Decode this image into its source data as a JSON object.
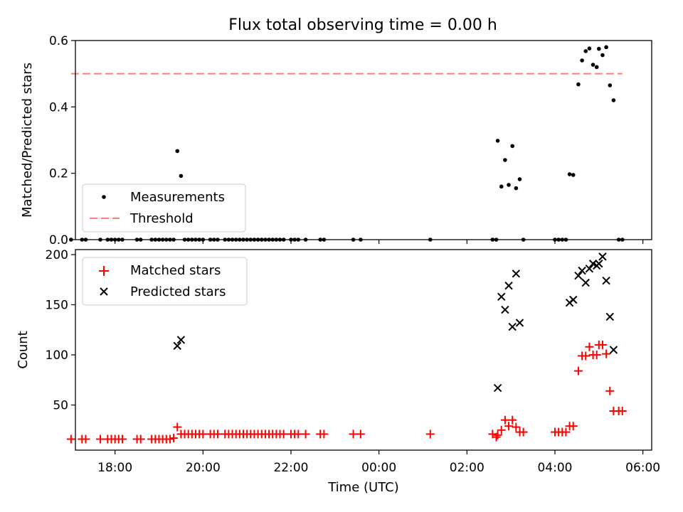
{
  "title": "Flux total observing time = 0.00 h",
  "chart_data": [
    {
      "type": "scatter",
      "ylabel": "Matched/Predicted stars",
      "ylim": [
        0,
        0.6
      ],
      "yticks": [
        "0.0",
        "0.2",
        "0.4",
        "0.6"
      ],
      "xlim": [
        "17:06",
        "06:12"
      ],
      "legend_position": "lower-left",
      "threshold": 0.5,
      "legend": [
        {
          "label": "Measurements",
          "marker": "dot",
          "color": "#000000"
        },
        {
          "label": "Threshold",
          "marker": "dashed-line",
          "color": "#ff7f7f"
        }
      ],
      "series": [
        {
          "name": "Measurements",
          "color": "#000000",
          "points": [
            [
              "17:00",
              0
            ],
            [
              "17:15",
              0
            ],
            [
              "17:20",
              0
            ],
            [
              "17:40",
              0
            ],
            [
              "17:50",
              0
            ],
            [
              "17:55",
              0
            ],
            [
              "18:00",
              0
            ],
            [
              "18:05",
              0
            ],
            [
              "18:10",
              0
            ],
            [
              "18:30",
              0
            ],
            [
              "18:35",
              0
            ],
            [
              "18:50",
              0
            ],
            [
              "18:55",
              0
            ],
            [
              "19:00",
              0
            ],
            [
              "19:05",
              0
            ],
            [
              "19:10",
              0
            ],
            [
              "19:15",
              0
            ],
            [
              "19:20",
              0
            ],
            [
              "19:25",
              0.267
            ],
            [
              "19:30",
              0.192
            ],
            [
              "19:35",
              0
            ],
            [
              "19:40",
              0
            ],
            [
              "19:45",
              0
            ],
            [
              "19:50",
              0
            ],
            [
              "19:55",
              0
            ],
            [
              "20:00",
              0
            ],
            [
              "20:10",
              0
            ],
            [
              "20:15",
              0
            ],
            [
              "20:20",
              0
            ],
            [
              "20:30",
              0
            ],
            [
              "20:35",
              0
            ],
            [
              "20:40",
              0
            ],
            [
              "20:45",
              0
            ],
            [
              "20:50",
              0
            ],
            [
              "20:55",
              0
            ],
            [
              "21:00",
              0
            ],
            [
              "21:05",
              0
            ],
            [
              "21:10",
              0
            ],
            [
              "21:15",
              0
            ],
            [
              "21:20",
              0
            ],
            [
              "21:25",
              0
            ],
            [
              "21:30",
              0
            ],
            [
              "21:35",
              0
            ],
            [
              "21:40",
              0
            ],
            [
              "21:45",
              0
            ],
            [
              "21:50",
              0
            ],
            [
              "22:00",
              0
            ],
            [
              "22:05",
              0
            ],
            [
              "22:10",
              0
            ],
            [
              "22:20",
              0
            ],
            [
              "22:40",
              0
            ],
            [
              "22:45",
              0
            ],
            [
              "23:25",
              0
            ],
            [
              "23:35",
              0
            ],
            [
              "01:10",
              0
            ],
            [
              "02:35",
              0
            ],
            [
              "02:40",
              0
            ],
            [
              "02:42",
              0.298
            ],
            [
              "02:47",
              0.16
            ],
            [
              "02:52",
              0.24
            ],
            [
              "02:57",
              0.165
            ],
            [
              "03:02",
              0.282
            ],
            [
              "03:07",
              0.155
            ],
            [
              "03:12",
              0.182
            ],
            [
              "03:17",
              0
            ],
            [
              "04:00",
              0
            ],
            [
              "04:05",
              0
            ],
            [
              "04:10",
              0
            ],
            [
              "04:15",
              0
            ],
            [
              "04:20",
              0.197
            ],
            [
              "04:25",
              0.195
            ],
            [
              "04:32",
              0.468
            ],
            [
              "04:37",
              0.54
            ],
            [
              "04:42",
              0.568
            ],
            [
              "04:47",
              0.576
            ],
            [
              "04:52",
              0.527
            ],
            [
              "04:57",
              0.52
            ],
            [
              "05:00",
              0.575
            ],
            [
              "05:05",
              0.556
            ],
            [
              "05:10",
              0.58
            ],
            [
              "05:15",
              0.465
            ],
            [
              "05:20",
              0.42
            ],
            [
              "05:27",
              0
            ],
            [
              "05:32",
              0
            ]
          ]
        }
      ]
    },
    {
      "type": "scatter",
      "xlabel": "Time (UTC)",
      "ylabel": "Count",
      "ylim": [
        5,
        205
      ],
      "yticks": [
        "50",
        "100",
        "150",
        "200"
      ],
      "xlim": [
        "17:06",
        "06:12"
      ],
      "xticks": [
        "18:00",
        "20:00",
        "22:00",
        "00:00",
        "02:00",
        "04:00",
        "06:00"
      ],
      "legend_position": "upper-left",
      "legend": [
        {
          "label": "Matched stars",
          "marker": "plus",
          "color": "#ff0000"
        },
        {
          "label": "Predicted stars",
          "marker": "x",
          "color": "#000000"
        }
      ],
      "series": [
        {
          "name": "Matched stars",
          "color": "#ff0000",
          "points": [
            [
              "17:00",
              16
            ],
            [
              "17:15",
              16
            ],
            [
              "17:20",
              16
            ],
            [
              "17:40",
              16
            ],
            [
              "17:50",
              16
            ],
            [
              "17:55",
              16
            ],
            [
              "18:00",
              16
            ],
            [
              "18:05",
              16
            ],
            [
              "18:10",
              16
            ],
            [
              "18:30",
              16
            ],
            [
              "18:35",
              16
            ],
            [
              "18:50",
              16
            ],
            [
              "18:55",
              16
            ],
            [
              "19:00",
              16
            ],
            [
              "19:05",
              16
            ],
            [
              "19:10",
              16
            ],
            [
              "19:15",
              16
            ],
            [
              "19:20",
              17
            ],
            [
              "19:25",
              28
            ],
            [
              "19:30",
              21
            ],
            [
              "19:35",
              21
            ],
            [
              "19:40",
              21
            ],
            [
              "19:45",
              21
            ],
            [
              "19:50",
              21
            ],
            [
              "19:55",
              21
            ],
            [
              "20:00",
              21
            ],
            [
              "20:10",
              21
            ],
            [
              "20:15",
              21
            ],
            [
              "20:20",
              21
            ],
            [
              "20:30",
              21
            ],
            [
              "20:35",
              21
            ],
            [
              "20:40",
              21
            ],
            [
              "20:45",
              21
            ],
            [
              "20:50",
              21
            ],
            [
              "20:55",
              21
            ],
            [
              "21:00",
              21
            ],
            [
              "21:05",
              21
            ],
            [
              "21:10",
              21
            ],
            [
              "21:15",
              21
            ],
            [
              "21:20",
              21
            ],
            [
              "21:25",
              21
            ],
            [
              "21:30",
              21
            ],
            [
              "21:35",
              21
            ],
            [
              "21:40",
              21
            ],
            [
              "21:45",
              21
            ],
            [
              "21:50",
              21
            ],
            [
              "22:00",
              21
            ],
            [
              "22:05",
              21
            ],
            [
              "22:10",
              21
            ],
            [
              "22:20",
              21
            ],
            [
              "22:40",
              21
            ],
            [
              "22:45",
              21
            ],
            [
              "23:25",
              21
            ],
            [
              "23:35",
              21
            ],
            [
              "01:10",
              21
            ],
            [
              "02:35",
              21
            ],
            [
              "02:40",
              18
            ],
            [
              "02:42",
              20
            ],
            [
              "02:47",
              25
            ],
            [
              "02:52",
              35
            ],
            [
              "02:57",
              29
            ],
            [
              "03:02",
              35
            ],
            [
              "03:07",
              28
            ],
            [
              "03:12",
              23
            ],
            [
              "03:17",
              23
            ],
            [
              "04:00",
              23
            ],
            [
              "04:05",
              23
            ],
            [
              "04:10",
              23
            ],
            [
              "04:15",
              23
            ],
            [
              "04:20",
              29
            ],
            [
              "04:25",
              29
            ],
            [
              "04:32",
              84
            ],
            [
              "04:37",
              99
            ],
            [
              "04:42",
              99
            ],
            [
              "04:47",
              108
            ],
            [
              "04:52",
              100
            ],
            [
              "04:57",
              100
            ],
            [
              "05:00",
              110
            ],
            [
              "05:05",
              110
            ],
            [
              "05:10",
              101
            ],
            [
              "05:15",
              64
            ],
            [
              "05:20",
              44
            ],
            [
              "05:27",
              44
            ],
            [
              "05:32",
              44
            ]
          ]
        },
        {
          "name": "Predicted stars",
          "color": "#000000",
          "points": [
            [
              "19:25",
              109
            ],
            [
              "19:30",
              115
            ],
            [
              "02:42",
              67
            ],
            [
              "02:47",
              158
            ],
            [
              "02:52",
              145
            ],
            [
              "02:57",
              169
            ],
            [
              "03:02",
              128
            ],
            [
              "03:07",
              181
            ],
            [
              "03:12",
              132
            ],
            [
              "04:20",
              152
            ],
            [
              "04:25",
              155
            ],
            [
              "04:32",
              179
            ],
            [
              "04:37",
              184
            ],
            [
              "04:42",
              172
            ],
            [
              "04:47",
              186
            ],
            [
              "04:52",
              191
            ],
            [
              "04:57",
              189
            ],
            [
              "05:00",
              191
            ],
            [
              "05:05",
              198
            ],
            [
              "05:10",
              174
            ],
            [
              "05:15",
              138
            ],
            [
              "05:20",
              105
            ]
          ]
        }
      ]
    }
  ]
}
